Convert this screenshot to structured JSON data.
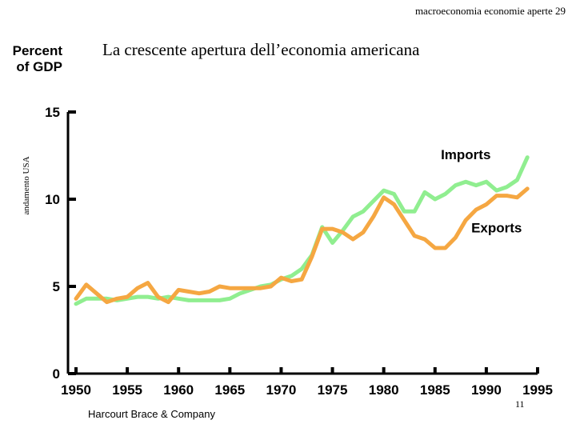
{
  "header_note": "macroeconomia economie aperte 29",
  "side_label": "andamento USA",
  "credit": "Harcourt Brace & Company",
  "page_number": "11",
  "colors": {
    "imports": "#90ee90",
    "exports": "#f5a742",
    "axis": "#000000"
  },
  "chart_data": {
    "type": "line",
    "title": "La crescente apertura dell’economia americana",
    "ylabel": "Percent\nof GDP",
    "xlabel": "",
    "xlim": [
      1950,
      1995
    ],
    "ylim": [
      0,
      15
    ],
    "x_ticks": [
      1950,
      1955,
      1960,
      1965,
      1970,
      1975,
      1980,
      1985,
      1990,
      1995
    ],
    "y_ticks": [
      0,
      5,
      10,
      15
    ],
    "grid": false,
    "legend": "inline labels",
    "series": [
      {
        "name": "Imports",
        "key": "imports",
        "x": [
          1950,
          1951,
          1952,
          1953,
          1954,
          1955,
          1956,
          1957,
          1958,
          1959,
          1960,
          1961,
          1962,
          1963,
          1964,
          1965,
          1966,
          1967,
          1968,
          1969,
          1970,
          1971,
          1972,
          1973,
          1974,
          1975,
          1976,
          1977,
          1978,
          1979,
          1980,
          1981,
          1982,
          1983,
          1984,
          1985,
          1986,
          1987,
          1988,
          1989,
          1990,
          1991,
          1992,
          1993,
          1994
        ],
        "values": [
          4.0,
          4.3,
          4.3,
          4.3,
          4.2,
          4.3,
          4.4,
          4.4,
          4.3,
          4.4,
          4.3,
          4.2,
          4.2,
          4.2,
          4.2,
          4.3,
          4.6,
          4.8,
          5.0,
          5.1,
          5.4,
          5.6,
          6.0,
          6.8,
          8.4,
          7.5,
          8.2,
          9.0,
          9.3,
          9.9,
          10.5,
          10.3,
          9.3,
          9.3,
          10.4,
          10.0,
          10.3,
          10.8,
          11.0,
          10.8,
          11.0,
          10.5,
          10.7,
          11.1,
          12.4
        ]
      },
      {
        "name": "Exports",
        "key": "exports",
        "x": [
          1950,
          1951,
          1952,
          1953,
          1954,
          1955,
          1956,
          1957,
          1958,
          1959,
          1960,
          1961,
          1962,
          1963,
          1964,
          1965,
          1966,
          1967,
          1968,
          1969,
          1970,
          1971,
          1972,
          1973,
          1974,
          1975,
          1976,
          1977,
          1978,
          1979,
          1980,
          1981,
          1982,
          1983,
          1984,
          1985,
          1986,
          1987,
          1988,
          1989,
          1990,
          1991,
          1992,
          1993,
          1994
        ],
        "values": [
          4.3,
          5.1,
          4.6,
          4.1,
          4.3,
          4.4,
          4.9,
          5.2,
          4.4,
          4.1,
          4.8,
          4.7,
          4.6,
          4.7,
          5.0,
          4.9,
          4.9,
          4.9,
          4.9,
          5.0,
          5.5,
          5.3,
          5.4,
          6.7,
          8.3,
          8.3,
          8.1,
          7.7,
          8.1,
          9.0,
          10.1,
          9.7,
          8.8,
          7.9,
          7.7,
          7.2,
          7.2,
          7.8,
          8.8,
          9.4,
          9.7,
          10.2,
          10.2,
          10.1,
          10.6
        ]
      }
    ]
  }
}
